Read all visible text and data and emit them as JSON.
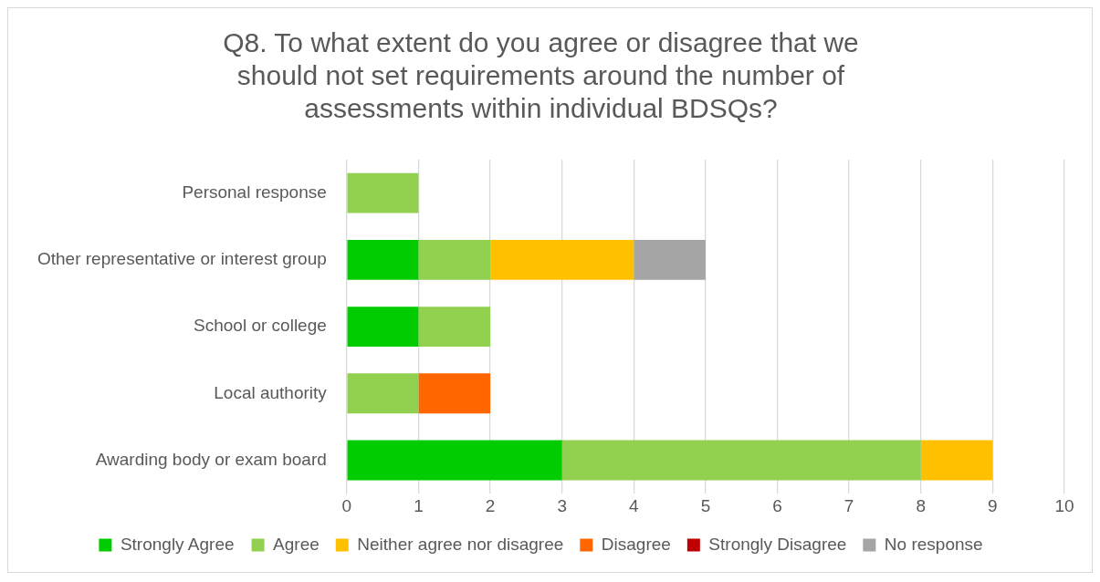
{
  "chart_data": {
    "type": "bar",
    "orientation": "horizontal",
    "stacked": true,
    "title": "Q8. To what extent do you agree or disagree that we should not set requirements around the number of assessments within individual BDSQs?",
    "categories": [
      "Personal response",
      "Other representative or interest group",
      "School or college",
      "Local authority",
      "Awarding body or exam board"
    ],
    "series": [
      {
        "name": "Strongly Agree",
        "color": "#00cc00",
        "values": [
          0,
          1,
          1,
          0,
          3
        ]
      },
      {
        "name": "Agree",
        "color": "#92d050",
        "values": [
          1,
          1,
          1,
          1,
          5
        ]
      },
      {
        "name": "Neither agree nor disagree",
        "color": "#ffc000",
        "values": [
          0,
          2,
          0,
          0,
          1
        ]
      },
      {
        "name": "Disagree",
        "color": "#ff6600",
        "values": [
          0,
          0,
          0,
          1,
          0
        ]
      },
      {
        "name": "Strongly Disagree",
        "color": "#c00000",
        "values": [
          0,
          0,
          0,
          0,
          0
        ]
      },
      {
        "name": "No response",
        "color": "#a5a5a5",
        "values": [
          0,
          1,
          0,
          0,
          0
        ]
      }
    ],
    "xlim": [
      0,
      10
    ],
    "xticks": [
      0,
      1,
      2,
      3,
      4,
      5,
      6,
      7,
      8,
      9,
      10
    ],
    "grid": "x",
    "legend": "bottom"
  }
}
